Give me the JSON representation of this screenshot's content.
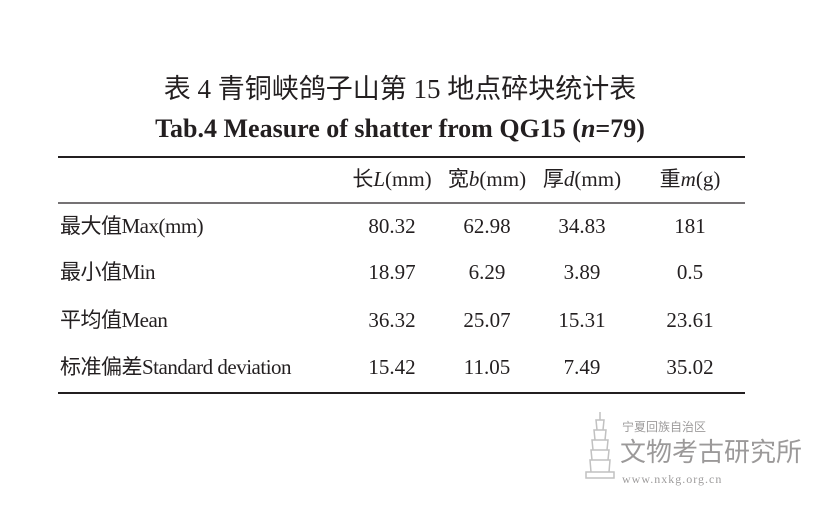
{
  "title_cn": "表 4  青铜峡鸽子山第 15 地点碎块统计表",
  "title_en": [
    "Tab.4  Measure of shatter from QG15 (",
    "n",
    "=79)"
  ],
  "table": {
    "headers": [
      [
        "长",
        "L",
        "(mm)"
      ],
      [
        "宽",
        "b",
        "(mm)"
      ],
      [
        "厚",
        "d",
        "(mm)"
      ],
      [
        "重",
        "m",
        "(g)"
      ]
    ],
    "rows": [
      [
        "最大值Max(mm)",
        "80.32",
        "62.98",
        "34.83",
        "181"
      ],
      [
        "最小值Min",
        "18.97",
        "6.29",
        "3.89",
        "0.5"
      ],
      [
        "平均值Mean",
        "36.32",
        "25.07",
        "15.31",
        "23.61"
      ],
      [
        "标准偏差Standard deviation",
        "15.42",
        "11.05",
        "7.49",
        "35.02"
      ]
    ]
  },
  "watermark": {
    "region": "宁夏回族自治区",
    "institute": "文物考古研究所",
    "url": "www.nxkg.org.cn"
  }
}
